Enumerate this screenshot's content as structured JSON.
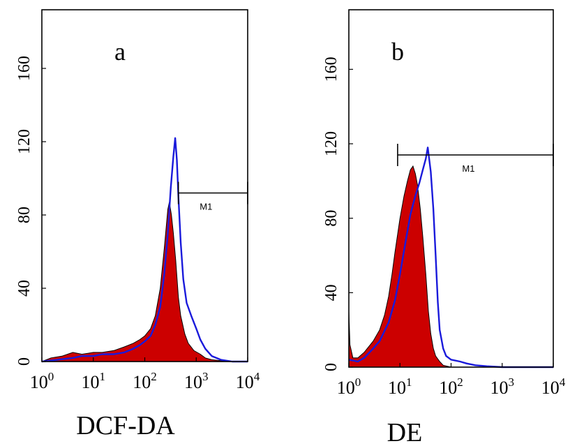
{
  "chart_data": [
    {
      "type": "area",
      "panel_label": "a",
      "xlabel": "DCF-DA",
      "ylabel": "",
      "x_scale": "log",
      "xlim": [
        1,
        10000
      ],
      "ylim": [
        0,
        192
      ],
      "x_ticks": [
        {
          "value": 1,
          "base": "10",
          "exp": "0"
        },
        {
          "value": 10,
          "base": "10",
          "exp": "1"
        },
        {
          "value": 100,
          "base": "10",
          "exp": "2"
        },
        {
          "value": 1000,
          "base": "10",
          "exp": "3"
        },
        {
          "value": 10000,
          "base": "10",
          "exp": "4"
        }
      ],
      "y_ticks": [
        {
          "value": 0,
          "label": "0"
        },
        {
          "value": 40,
          "label": "40"
        },
        {
          "value": 80,
          "label": "80"
        },
        {
          "value": 120,
          "label": "120"
        },
        {
          "value": 160,
          "label": "160"
        }
      ],
      "marker": {
        "label": "M1",
        "x_start": 450,
        "x_end": 10000,
        "y": 92
      },
      "series": [
        {
          "style": "filled",
          "color": "#cc0000",
          "edge_color": "#000000",
          "x": [
            1,
            1.5,
            2.5,
            4,
            6,
            10,
            15,
            25,
            40,
            60,
            80,
            100,
            130,
            160,
            200,
            240,
            280,
            300,
            330,
            360,
            400,
            450,
            500,
            600,
            700,
            900,
            1200,
            1500,
            2000,
            3000,
            5000,
            10000
          ],
          "y": [
            0,
            2,
            3,
            5,
            4,
            5,
            5,
            6,
            8,
            10,
            12,
            14,
            18,
            25,
            40,
            62,
            83,
            87,
            80,
            70,
            55,
            35,
            25,
            15,
            10,
            6,
            4,
            2,
            1,
            0.5,
            0,
            0
          ]
        },
        {
          "style": "line",
          "color": "#1a1adb",
          "x": [
            1,
            2,
            4,
            6,
            10,
            15,
            25,
            40,
            60,
            80,
            100,
            130,
            160,
            200,
            240,
            280,
            320,
            360,
            390,
            420,
            450,
            500,
            560,
            650,
            800,
            1000,
            1200,
            1500,
            2000,
            3000,
            5000,
            10000
          ],
          "y": [
            0,
            1,
            2,
            3,
            3,
            4,
            4,
            5,
            7,
            9,
            11,
            14,
            20,
            30,
            48,
            70,
            95,
            112,
            122,
            110,
            90,
            65,
            45,
            32,
            25,
            18,
            12,
            7,
            3,
            1,
            0,
            0
          ]
        }
      ]
    },
    {
      "type": "area",
      "panel_label": "b",
      "xlabel": "DE",
      "ylabel": "",
      "x_scale": "log",
      "xlim": [
        1,
        10000
      ],
      "ylim": [
        0,
        192
      ],
      "x_ticks": [
        {
          "value": 1,
          "base": "10",
          "exp": "0"
        },
        {
          "value": 10,
          "base": "10",
          "exp": "1"
        },
        {
          "value": 100,
          "base": "10",
          "exp": "2"
        },
        {
          "value": 1000,
          "base": "10",
          "exp": "3"
        },
        {
          "value": 10000,
          "base": "10",
          "exp": "4"
        }
      ],
      "y_ticks": [
        {
          "value": 0,
          "label": "0"
        },
        {
          "value": 40,
          "label": "40"
        },
        {
          "value": 80,
          "label": "80"
        },
        {
          "value": 120,
          "label": "120"
        },
        {
          "value": 160,
          "label": "160"
        }
      ],
      "marker": {
        "label": "M1",
        "x_start": 9,
        "x_end": 10000,
        "y": 114
      },
      "series": [
        {
          "style": "filled",
          "color": "#cc0000",
          "edge_color": "#000000",
          "x": [
            1,
            1.05,
            1.2,
            1.5,
            2,
            3,
            4,
            5,
            6,
            7,
            8,
            10,
            12,
            14,
            16,
            18,
            20,
            22,
            25,
            28,
            32,
            36,
            40,
            45,
            50,
            60,
            70,
            100,
            10000
          ],
          "y": [
            30,
            12,
            5,
            5,
            8,
            14,
            20,
            28,
            38,
            50,
            62,
            80,
            92,
            100,
            106,
            108,
            104,
            98,
            85,
            70,
            50,
            30,
            18,
            10,
            6,
            3,
            1,
            0,
            0
          ]
        },
        {
          "style": "line",
          "color": "#1a1adb",
          "x": [
            1,
            1.5,
            2,
            3,
            4,
            6,
            8,
            10,
            13,
            16,
            20,
            24,
            28,
            32,
            35,
            40,
            45,
            50,
            55,
            60,
            70,
            80,
            100,
            150,
            200,
            300,
            500,
            1000,
            10000
          ],
          "y": [
            4,
            3,
            5,
            10,
            14,
            24,
            36,
            50,
            68,
            82,
            92,
            99,
            106,
            112,
            118,
            105,
            85,
            60,
            35,
            20,
            10,
            6,
            4,
            3,
            2,
            1,
            0.5,
            0,
            0
          ]
        }
      ]
    }
  ]
}
